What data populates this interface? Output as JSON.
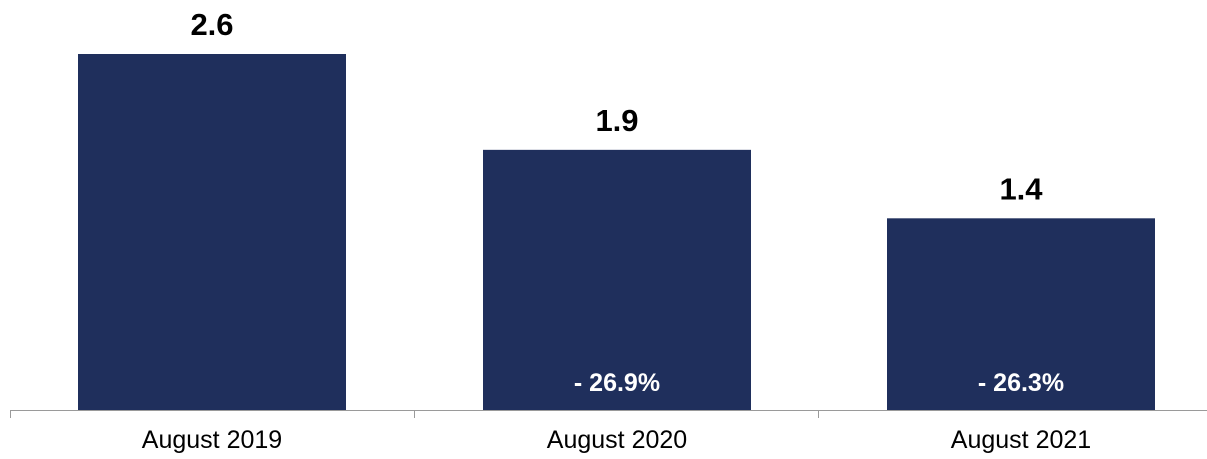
{
  "chart_data": {
    "type": "bar",
    "categories": [
      "August 2019",
      "August 2020",
      "August 2021"
    ],
    "values": [
      2.6,
      1.9,
      1.4
    ],
    "value_labels": [
      "2.6",
      "1.9",
      "1.4"
    ],
    "change_labels": [
      "",
      "- 26.9%",
      "- 26.3%"
    ],
    "title": "",
    "xlabel": "",
    "ylabel": "",
    "ylim": [
      0,
      2.6
    ],
    "grid": false,
    "legend": "none",
    "bar_color": "#1f2f5c",
    "axis_color": "#9a9a9a",
    "change_label_color": "#ffffff"
  }
}
